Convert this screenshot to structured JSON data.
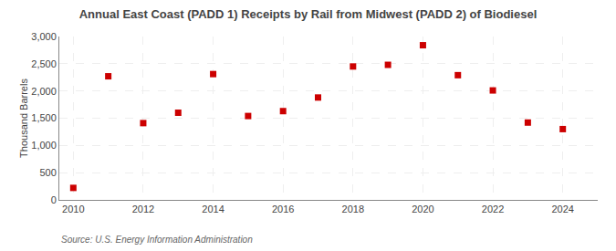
{
  "chart_data": {
    "type": "scatter",
    "title": "Annual East Coast (PADD 1) Receipts by Rail from Midwest (PADD 2) of Biodiesel",
    "ylabel": "Thousand Barrels",
    "annotations": [
      "Source: U.S. Energy Information Administration"
    ],
    "x": [
      2010,
      2011,
      2012,
      2013,
      2014,
      2015,
      2016,
      2017,
      2018,
      2019,
      2020,
      2021,
      2022,
      2023,
      2024
    ],
    "values": [
      220,
      2270,
      1410,
      1600,
      2310,
      1540,
      1630,
      1880,
      2450,
      2480,
      2840,
      2290,
      2010,
      1420,
      1300
    ],
    "color": "#cc0000",
    "marker": "square",
    "xlim": [
      2009.6,
      2025.0
    ],
    "xticks": [
      2010,
      2012,
      2014,
      2016,
      2018,
      2020,
      2022,
      2024
    ],
    "ylim": [
      0,
      3000
    ],
    "yticks": [
      0,
      500,
      {
        "value": 1000,
        "label": "1,000"
      },
      {
        "value": 1500,
        "label": "1,500"
      },
      {
        "value": 2000,
        "label": "2,000"
      },
      {
        "value": 2500,
        "label": "2,500"
      },
      {
        "value": 3000,
        "label": "3,000"
      }
    ],
    "grid": true
  }
}
